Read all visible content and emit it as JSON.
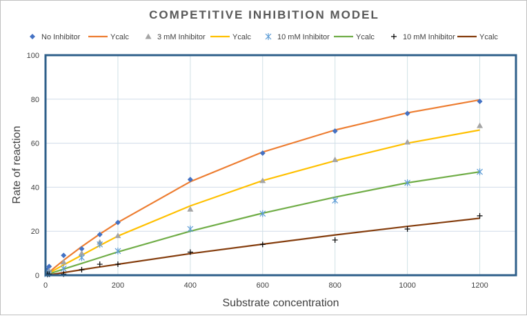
{
  "chart_data": {
    "type": "scatter",
    "title": "COMPETITIVE INHIBITION MODEL",
    "xlabel": "Substrate concentration",
    "ylabel": "Rate of reaction",
    "xlim": [
      0,
      1300
    ],
    "ylim": [
      0,
      100
    ],
    "xticks": [
      0,
      200,
      400,
      600,
      800,
      1000,
      1200
    ],
    "yticks": [
      0,
      20,
      40,
      60,
      80,
      100
    ],
    "grid": true,
    "legend_position": "top",
    "x": [
      5,
      10,
      50,
      100,
      150,
      200,
      400,
      600,
      800,
      1000,
      1200
    ],
    "series": [
      {
        "name": "No Inhibitor",
        "kind": "markers",
        "marker": "diamond",
        "color": "#4472c4",
        "values": [
          2.5,
          4,
          9,
          12,
          18.5,
          24,
          43.5,
          55.5,
          65.5,
          73.5,
          79
        ]
      },
      {
        "name": "Ycalc",
        "kind": "line",
        "color": "#ed7d31",
        "values": [
          0.7,
          1.4,
          6.8,
          13,
          18.7,
          24,
          42.5,
          56,
          66,
          73.8,
          79.7
        ]
      },
      {
        "name": "3 mM Inhibitor",
        "kind": "markers",
        "marker": "triangle",
        "color": "#a5a5a5",
        "values": [
          1,
          2,
          6,
          10,
          15,
          18,
          30,
          43,
          52.5,
          60.5,
          68
        ]
      },
      {
        "name": "Ycalc",
        "kind": "line",
        "color": "#ffc000",
        "values": [
          0.5,
          1,
          4.7,
          9.1,
          13.5,
          17.8,
          31.5,
          43,
          52,
          60,
          66
        ]
      },
      {
        "name": "10 mM Inhibitor",
        "kind": "markers",
        "marker": "asterisk",
        "color": "#5b9bd5",
        "values": [
          0.5,
          1,
          3,
          8,
          14,
          11,
          21,
          28,
          34,
          42,
          47
        ]
      },
      {
        "name": "Ycalc",
        "kind": "line",
        "color": "#70ad47",
        "values": [
          0.3,
          0.6,
          2.8,
          5.4,
          8,
          10.6,
          20,
          28.2,
          35.5,
          42,
          47
        ]
      },
      {
        "name": "10 mM Inhibitor",
        "kind": "markers",
        "marker": "plus",
        "color": "#000000",
        "values": [
          0.5,
          0.5,
          0.5,
          2.5,
          5,
          5,
          10.5,
          14,
          16,
          21,
          27
        ]
      },
      {
        "name": "Ycalc",
        "kind": "line",
        "color": "#843c0c",
        "values": [
          0.1,
          0.2,
          1.2,
          2.5,
          3.8,
          5,
          9.8,
          14.1,
          18.3,
          22.2,
          25.9
        ]
      }
    ]
  }
}
